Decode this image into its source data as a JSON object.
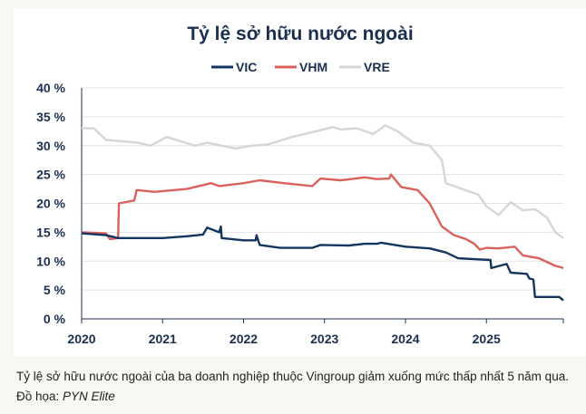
{
  "chart_data": {
    "type": "line",
    "title": "Tỷ lệ sở hữu nước ngoài",
    "xlabel": "",
    "ylabel": "",
    "x_ticks": [
      "2020",
      "2021",
      "2022",
      "2023",
      "2024",
      "2025"
    ],
    "y_ticks": [
      "0 %",
      "5 %",
      "10 %",
      "15 %",
      "20 %",
      "25 %",
      "30 %",
      "35 %",
      "40 %"
    ],
    "xlim": [
      2020,
      2025.95
    ],
    "ylim": [
      0,
      40
    ],
    "grid": "horizontal",
    "legend_placement": "top",
    "series": [
      {
        "name": "VIC",
        "color": "#13355e",
        "points": [
          [
            2020,
            14.8
          ],
          [
            2020.3,
            14.5
          ],
          [
            2020.45,
            14
          ],
          [
            2021.0,
            14
          ],
          [
            2021.3,
            14.3
          ],
          [
            2021.5,
            14.6
          ],
          [
            2021.55,
            15.8
          ],
          [
            2021.7,
            15
          ],
          [
            2021.72,
            16
          ],
          [
            2021.73,
            14
          ],
          [
            2022.0,
            13.6
          ],
          [
            2022.15,
            13.6
          ],
          [
            2022.16,
            14.5
          ],
          [
            2022.2,
            12.8
          ],
          [
            2022.45,
            12.3
          ],
          [
            2022.85,
            12.3
          ],
          [
            2022.95,
            12.8
          ],
          [
            2023.3,
            12.7
          ],
          [
            2023.5,
            13
          ],
          [
            2023.65,
            13
          ],
          [
            2023.7,
            13.2
          ],
          [
            2024.0,
            12.5
          ],
          [
            2024.3,
            12.2
          ],
          [
            2024.5,
            11.5
          ],
          [
            2024.65,
            10.5
          ],
          [
            2024.9,
            10.3
          ],
          [
            2025.05,
            10.2
          ],
          [
            2025.06,
            8.8
          ],
          [
            2025.25,
            9.5
          ],
          [
            2025.3,
            8
          ],
          [
            2025.5,
            7.8
          ],
          [
            2025.53,
            7
          ],
          [
            2025.58,
            6.8
          ],
          [
            2025.6,
            3.8
          ],
          [
            2025.9,
            3.8
          ],
          [
            2025.95,
            3.2
          ]
        ]
      },
      {
        "name": "VHM",
        "color": "#d9625c",
        "points": [
          [
            2020,
            15
          ],
          [
            2020.3,
            14.8
          ],
          [
            2020.35,
            13.8
          ],
          [
            2020.45,
            14
          ],
          [
            2020.46,
            20
          ],
          [
            2020.65,
            20.5
          ],
          [
            2020.68,
            22.3
          ],
          [
            2020.9,
            22
          ],
          [
            2021.3,
            22.5
          ],
          [
            2021.6,
            23.5
          ],
          [
            2021.7,
            23
          ],
          [
            2022.0,
            23.5
          ],
          [
            2022.2,
            24
          ],
          [
            2022.5,
            23.5
          ],
          [
            2022.85,
            23
          ],
          [
            2022.95,
            24.3
          ],
          [
            2023.2,
            24
          ],
          [
            2023.5,
            24.5
          ],
          [
            2023.65,
            24.2
          ],
          [
            2023.8,
            24.3
          ],
          [
            2023.82,
            25
          ],
          [
            2023.95,
            22.8
          ],
          [
            2024.15,
            22.3
          ],
          [
            2024.3,
            20
          ],
          [
            2024.45,
            16
          ],
          [
            2024.6,
            14.5
          ],
          [
            2024.75,
            13.8
          ],
          [
            2024.85,
            13
          ],
          [
            2024.92,
            12
          ],
          [
            2025.0,
            12.3
          ],
          [
            2025.15,
            12.2
          ],
          [
            2025.35,
            12.5
          ],
          [
            2025.45,
            11
          ],
          [
            2025.65,
            10.5
          ],
          [
            2025.85,
            9.2
          ],
          [
            2025.95,
            8.8
          ]
        ]
      },
      {
        "name": "VRE",
        "color": "#d6d6d6",
        "points": [
          [
            2020,
            33
          ],
          [
            2020.15,
            33
          ],
          [
            2020.3,
            31
          ],
          [
            2020.7,
            30.5
          ],
          [
            2020.85,
            30
          ],
          [
            2021.05,
            31.5
          ],
          [
            2021.4,
            30
          ],
          [
            2021.55,
            30.5
          ],
          [
            2021.9,
            29.5
          ],
          [
            2022.1,
            30
          ],
          [
            2022.3,
            30.2
          ],
          [
            2022.6,
            31.5
          ],
          [
            2022.9,
            32.5
          ],
          [
            2023.1,
            33.2
          ],
          [
            2023.2,
            32.8
          ],
          [
            2023.4,
            33
          ],
          [
            2023.6,
            32
          ],
          [
            2023.75,
            33.5
          ],
          [
            2023.9,
            32.5
          ],
          [
            2024.1,
            30.5
          ],
          [
            2024.3,
            30
          ],
          [
            2024.45,
            27.5
          ],
          [
            2024.5,
            23.5
          ],
          [
            2024.7,
            22.5
          ],
          [
            2024.9,
            21.5
          ],
          [
            2025.0,
            19.5
          ],
          [
            2025.15,
            18
          ],
          [
            2025.3,
            20.2
          ],
          [
            2025.45,
            18.8
          ],
          [
            2025.6,
            19
          ],
          [
            2025.75,
            17.5
          ],
          [
            2025.85,
            15
          ],
          [
            2025.95,
            14
          ]
        ]
      }
    ]
  },
  "caption": {
    "text": "Tỷ lệ sở hữu nước ngoài của ba doanh nghiệp thuộc Vingroup giảm xuống mức thấp nhất 5 năm qua. Đồ họa: ",
    "credit": "PYN Elite"
  }
}
